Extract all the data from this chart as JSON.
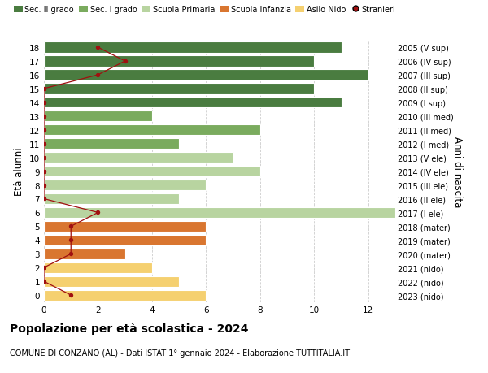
{
  "ages": [
    18,
    17,
    16,
    15,
    14,
    13,
    12,
    11,
    10,
    9,
    8,
    7,
    6,
    5,
    4,
    3,
    2,
    1,
    0
  ],
  "labels_right": [
    "2005 (V sup)",
    "2006 (IV sup)",
    "2007 (III sup)",
    "2008 (II sup)",
    "2009 (I sup)",
    "2010 (III med)",
    "2011 (II med)",
    "2012 (I med)",
    "2013 (V ele)",
    "2014 (IV ele)",
    "2015 (III ele)",
    "2016 (II ele)",
    "2017 (I ele)",
    "2018 (mater)",
    "2019 (mater)",
    "2020 (mater)",
    "2021 (nido)",
    "2022 (nido)",
    "2023 (nido)"
  ],
  "bar_values": [
    11,
    10,
    12,
    10,
    11,
    4,
    8,
    5,
    7,
    8,
    6,
    5,
    13,
    6,
    6,
    3,
    4,
    5,
    6
  ],
  "bar_colors": [
    "#4a7c40",
    "#4a7c40",
    "#4a7c40",
    "#4a7c40",
    "#4a7c40",
    "#7aab5e",
    "#7aab5e",
    "#7aab5e",
    "#b8d4a0",
    "#b8d4a0",
    "#b8d4a0",
    "#b8d4a0",
    "#b8d4a0",
    "#d97630",
    "#d97630",
    "#d97630",
    "#f5d070",
    "#f5d070",
    "#f5d070"
  ],
  "stranieri_values": [
    2,
    3,
    2,
    0,
    0,
    0,
    0,
    0,
    0,
    0,
    0,
    0,
    2,
    1,
    1,
    1,
    0,
    0,
    1
  ],
  "legend_labels": [
    "Sec. II grado",
    "Sec. I grado",
    "Scuola Primaria",
    "Scuola Infanzia",
    "Asilo Nido",
    "Stranieri"
  ],
  "legend_colors": [
    "#4a7c40",
    "#7aab5e",
    "#b8d4a0",
    "#d97630",
    "#f5d070",
    "#a01010"
  ],
  "ylabel": "Età alunni",
  "ylabel_right": "Anni di nascita",
  "title_bold": "Popolazione per età scolastica - 2024",
  "subtitle": "COMUNE DI CONZANO (AL) - Dati ISTAT 1° gennaio 2024 - Elaborazione TUTTITALIA.IT",
  "xlim": [
    0,
    13
  ],
  "xticks": [
    0,
    2,
    4,
    6,
    8,
    10,
    12
  ],
  "ylim": [
    -0.5,
    18.5
  ],
  "background_color": "#ffffff",
  "grid_color": "#cccccc",
  "stranieri_color": "#a01010",
  "stranieri_line_color": "#a01010"
}
